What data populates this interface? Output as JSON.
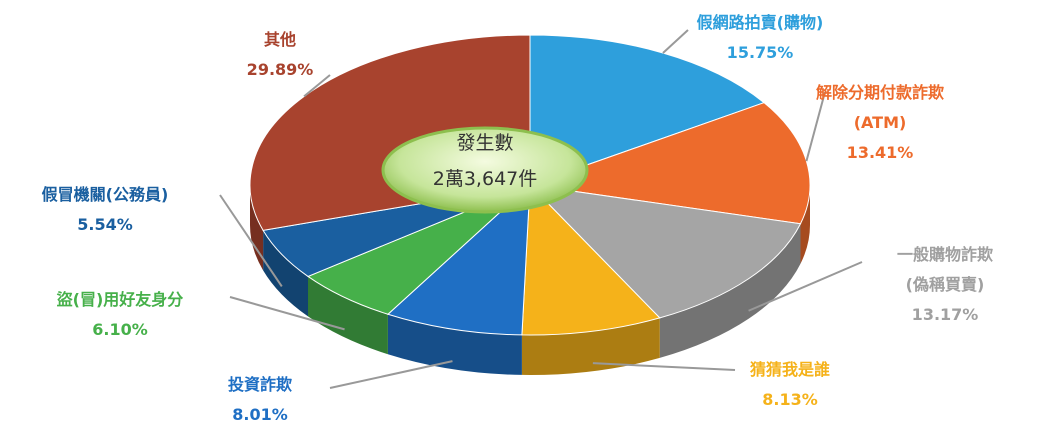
{
  "chart_data": {
    "type": "pie3d",
    "categories": [
      "假網路拍賣(購物)",
      "解除分期付款詐欺\n(ATM)",
      "一般購物詐欺\n(偽稱買賣)",
      "猜猜我是誰",
      "投資詐欺",
      "盜(冒)用好友身分",
      "假冒機關(公務員)",
      "其他"
    ],
    "values": [
      15.75,
      13.41,
      13.17,
      8.13,
      8.01,
      6.1,
      5.54,
      29.89
    ],
    "value_labels": [
      "15.75%",
      "13.41%",
      "13.17%",
      "8.13%",
      "8.01%",
      "6.10%",
      "5.54%",
      "29.89%"
    ],
    "colors": [
      "#2e9fdc",
      "#ed6b2c",
      "#a5a5a5",
      "#f5b21a",
      "#1f6fc4",
      "#46b04a",
      "#1a5fa0",
      "#a8432e"
    ],
    "center_label": {
      "title": "發生數",
      "value": "2萬3,647件"
    }
  }
}
